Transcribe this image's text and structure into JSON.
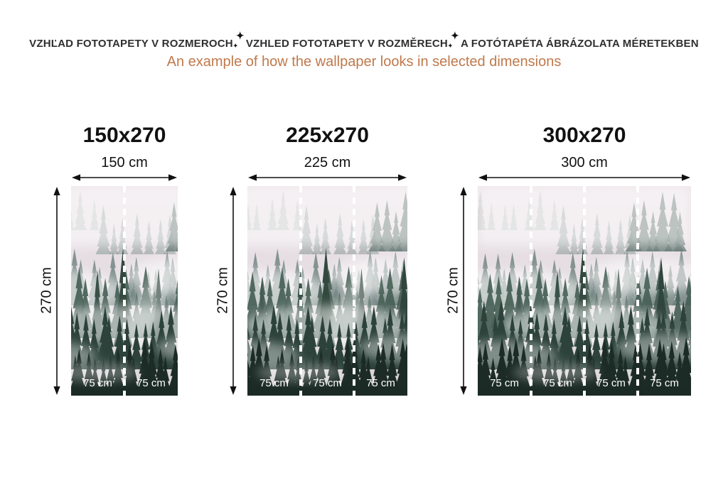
{
  "header": {
    "title_parts": [
      "VZHĽAD FOTOTAPETY V ROZMEROCH",
      "VZHLED FOTOTAPETY V ROZMĚRECH",
      "A FOTÓTAPÉTA ÁBRÁZOLATA MÉRETEKBEN"
    ],
    "separator_icon": "✦",
    "subtitle": "An example of how the wallpaper looks in selected dimensions",
    "title_color": "#2f2f2f",
    "subtitle_color": "#c0794b"
  },
  "panels": [
    {
      "title": "150x270",
      "width_label": "150 cm",
      "height_label": "270 cm",
      "strip_labels": [
        "75 cm",
        "75 cm"
      ]
    },
    {
      "title": "225x270",
      "width_label": "225 cm",
      "height_label": "270 cm",
      "strip_labels": [
        "75 cm",
        "75 cm",
        "75 cm"
      ]
    },
    {
      "title": "300x270",
      "width_label": "300 cm",
      "height_label": "270 cm",
      "strip_labels": [
        "75 cm",
        "75 cm",
        "75 cm",
        "75 cm"
      ]
    }
  ],
  "image": {
    "subject": "misty-forest-wallpaper",
    "seam_color": "#ffffff",
    "arrow_color": "#111111"
  }
}
